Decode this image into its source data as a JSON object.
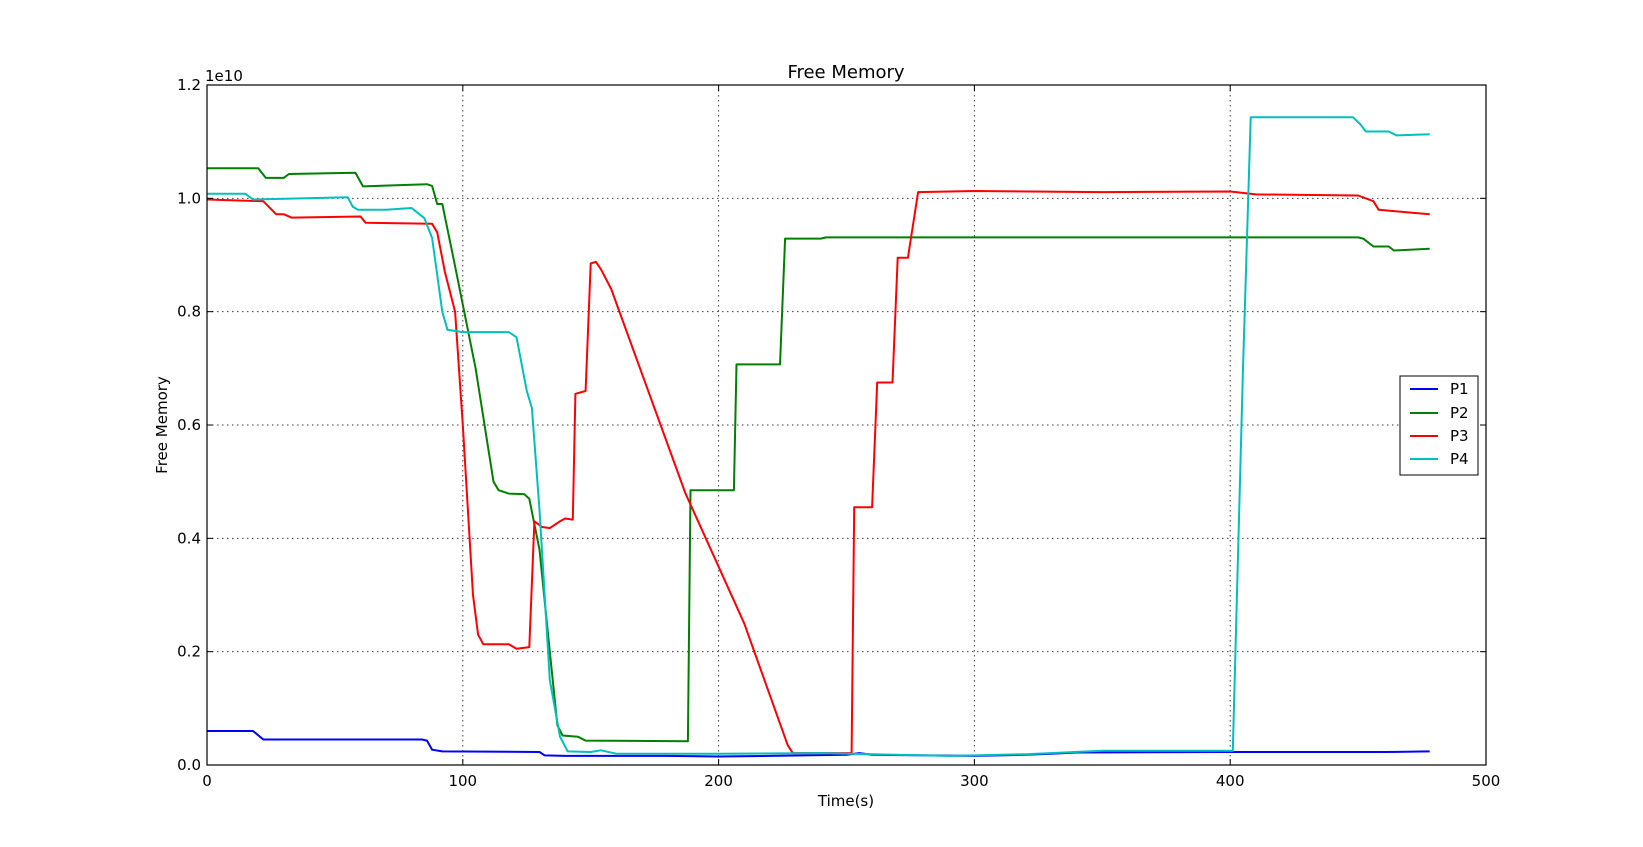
{
  "chart_data": {
    "type": "line",
    "title": "Free Memory",
    "xlabel": "Time(s)",
    "ylabel": "Free Memory",
    "y_scale_label": "1e10",
    "xlim": [
      0,
      500
    ],
    "ylim": [
      0,
      1.2
    ],
    "x_ticks": [
      "0",
      "100",
      "200",
      "300",
      "400",
      "500"
    ],
    "y_ticks": [
      "0.0",
      "0.2",
      "0.4",
      "0.6",
      "0.8",
      "1.0",
      "1.2"
    ],
    "grid": true,
    "legend_position": "center-right",
    "series": [
      {
        "name": "P1",
        "color": "#0000ff",
        "points": [
          [
            0,
            0.06
          ],
          [
            18,
            0.06
          ],
          [
            22,
            0.045
          ],
          [
            84,
            0.045
          ],
          [
            86,
            0.043
          ],
          [
            88,
            0.027
          ],
          [
            92,
            0.024
          ],
          [
            130,
            0.023
          ],
          [
            132,
            0.017
          ],
          [
            140,
            0.016
          ],
          [
            180,
            0.016
          ],
          [
            200,
            0.015
          ],
          [
            220,
            0.016
          ],
          [
            250,
            0.018
          ],
          [
            255,
            0.021
          ],
          [
            260,
            0.018
          ],
          [
            300,
            0.016
          ],
          [
            320,
            0.018
          ],
          [
            330,
            0.02
          ],
          [
            340,
            0.022
          ],
          [
            400,
            0.023
          ],
          [
            460,
            0.023
          ],
          [
            478,
            0.024
          ]
        ]
      },
      {
        "name": "P2",
        "color": "#008000",
        "points": [
          [
            0,
            1.053
          ],
          [
            20,
            1.053
          ],
          [
            23,
            1.036
          ],
          [
            30,
            1.036
          ],
          [
            32,
            1.043
          ],
          [
            58,
            1.045
          ],
          [
            61,
            1.021
          ],
          [
            86,
            1.025
          ],
          [
            88,
            1.022
          ],
          [
            90,
            0.99
          ],
          [
            92,
            0.99
          ],
          [
            97,
            0.88
          ],
          [
            105,
            0.7
          ],
          [
            112,
            0.5
          ],
          [
            114,
            0.485
          ],
          [
            118,
            0.479
          ],
          [
            124,
            0.478
          ],
          [
            126,
            0.47
          ],
          [
            130,
            0.38
          ],
          [
            134,
            0.2
          ],
          [
            137,
            0.07
          ],
          [
            139,
            0.052
          ],
          [
            145,
            0.05
          ],
          [
            148,
            0.043
          ],
          [
            188,
            0.042
          ],
          [
            189,
            0.485
          ],
          [
            206,
            0.485
          ],
          [
            207,
            0.707
          ],
          [
            224,
            0.707
          ],
          [
            226,
            0.929
          ],
          [
            240,
            0.929
          ],
          [
            242,
            0.931
          ],
          [
            450,
            0.931
          ],
          [
            452,
            0.929
          ],
          [
            456,
            0.915
          ],
          [
            462,
            0.915
          ],
          [
            464,
            0.908
          ],
          [
            478,
            0.911
          ]
        ]
      },
      {
        "name": "P3",
        "color": "#ff0000",
        "points": [
          [
            0,
            0.998
          ],
          [
            22,
            0.995
          ],
          [
            27,
            0.972
          ],
          [
            30,
            0.972
          ],
          [
            33,
            0.966
          ],
          [
            60,
            0.968
          ],
          [
            62,
            0.957
          ],
          [
            88,
            0.955
          ],
          [
            90,
            0.94
          ],
          [
            93,
            0.87
          ],
          [
            97,
            0.8
          ],
          [
            100,
            0.6
          ],
          [
            104,
            0.3
          ],
          [
            106,
            0.23
          ],
          [
            108,
            0.213
          ],
          [
            118,
            0.213
          ],
          [
            121,
            0.205
          ],
          [
            126,
            0.208
          ],
          [
            128,
            0.43
          ],
          [
            131,
            0.42
          ],
          [
            134,
            0.418
          ],
          [
            138,
            0.43
          ],
          [
            140,
            0.435
          ],
          [
            143,
            0.433
          ],
          [
            144,
            0.655
          ],
          [
            148,
            0.66
          ],
          [
            150,
            0.885
          ],
          [
            152,
            0.888
          ],
          [
            154,
            0.875
          ],
          [
            158,
            0.84
          ],
          [
            187,
            0.48
          ],
          [
            192,
            0.43
          ],
          [
            210,
            0.25
          ],
          [
            227,
            0.035
          ],
          [
            229,
            0.021
          ],
          [
            252,
            0.021
          ],
          [
            253,
            0.455
          ],
          [
            260,
            0.455
          ],
          [
            262,
            0.675
          ],
          [
            268,
            0.675
          ],
          [
            270,
            0.895
          ],
          [
            274,
            0.895
          ],
          [
            278,
            1.011
          ],
          [
            300,
            1.013
          ],
          [
            350,
            1.011
          ],
          [
            400,
            1.012
          ],
          [
            410,
            1.007
          ],
          [
            450,
            1.005
          ],
          [
            456,
            0.995
          ],
          [
            458,
            0.98
          ],
          [
            470,
            0.975
          ],
          [
            478,
            0.972
          ]
        ]
      },
      {
        "name": "P4",
        "color": "#00bfbf",
        "points": [
          [
            0,
            1.008
          ],
          [
            15,
            1.008
          ],
          [
            18,
            0.998
          ],
          [
            55,
            1.002
          ],
          [
            57,
            0.985
          ],
          [
            59,
            0.98
          ],
          [
            70,
            0.98
          ],
          [
            80,
            0.983
          ],
          [
            85,
            0.965
          ],
          [
            88,
            0.93
          ],
          [
            92,
            0.8
          ],
          [
            94,
            0.768
          ],
          [
            100,
            0.764
          ],
          [
            118,
            0.764
          ],
          [
            121,
            0.755
          ],
          [
            125,
            0.66
          ],
          [
            127,
            0.63
          ],
          [
            130,
            0.45
          ],
          [
            134,
            0.15
          ],
          [
            138,
            0.05
          ],
          [
            141,
            0.024
          ],
          [
            150,
            0.023
          ],
          [
            154,
            0.026
          ],
          [
            160,
            0.02
          ],
          [
            200,
            0.02
          ],
          [
            240,
            0.021
          ],
          [
            290,
            0.016
          ],
          [
            300,
            0.017
          ],
          [
            320,
            0.019
          ],
          [
            350,
            0.025
          ],
          [
            401,
            0.025
          ],
          [
            405,
            0.7
          ],
          [
            408,
            1.143
          ],
          [
            448,
            1.143
          ],
          [
            451,
            1.13
          ],
          [
            453,
            1.118
          ],
          [
            462,
            1.118
          ],
          [
            465,
            1.111
          ],
          [
            478,
            1.113
          ]
        ]
      }
    ]
  }
}
